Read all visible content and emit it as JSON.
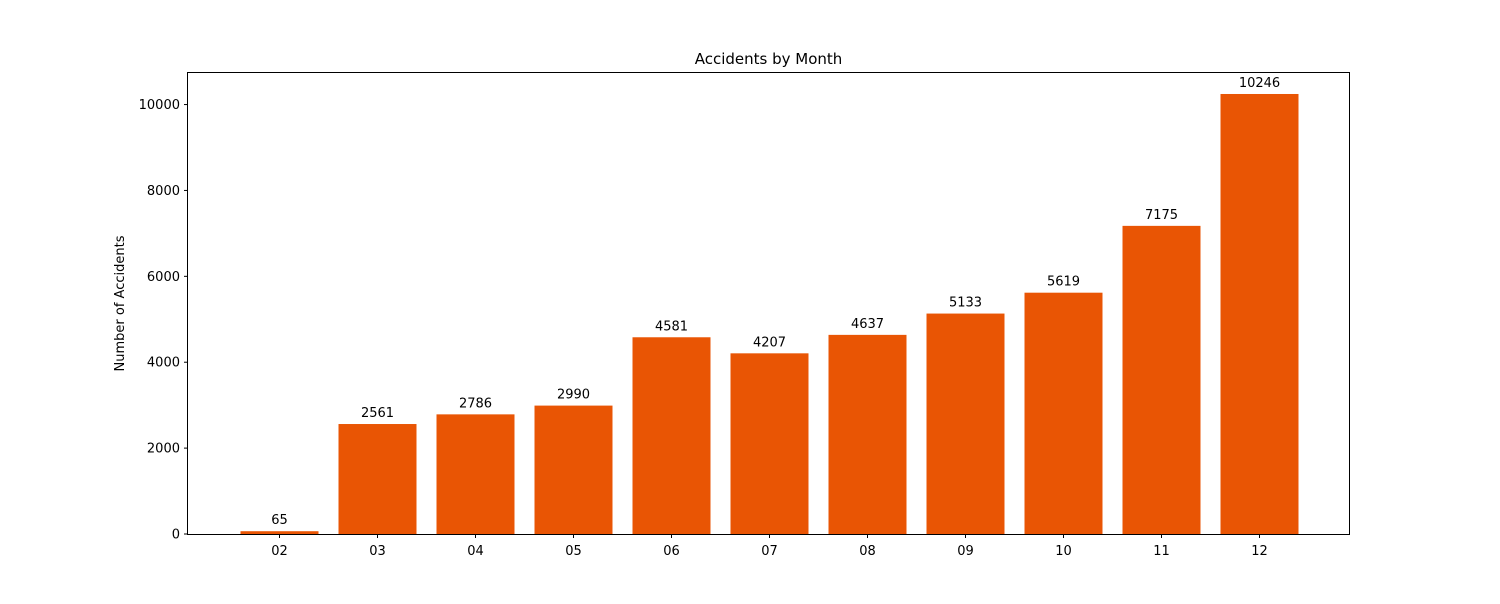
{
  "chart_data": {
    "type": "bar",
    "title": "Accidents by Month",
    "xlabel": "",
    "ylabel": "Number of Accidents",
    "categories": [
      "02",
      "03",
      "04",
      "05",
      "06",
      "07",
      "08",
      "09",
      "10",
      "11",
      "12"
    ],
    "values": [
      65,
      2561,
      2786,
      2990,
      4581,
      4207,
      4637,
      5133,
      5619,
      7175,
      10246
    ],
    "data_labels": [
      "65",
      "2561",
      "2786",
      "2990",
      "4581",
      "4207",
      "4637",
      "5133",
      "5619",
      "7175",
      "10246"
    ],
    "yticks": [
      0,
      2000,
      4000,
      6000,
      8000,
      10000
    ],
    "ytick_labels": [
      "0",
      "2000",
      "4000",
      "6000",
      "8000",
      "10000"
    ],
    "ylim": [
      0,
      10758
    ],
    "grid": false,
    "legend": "none",
    "bar_color": "#e95504"
  }
}
